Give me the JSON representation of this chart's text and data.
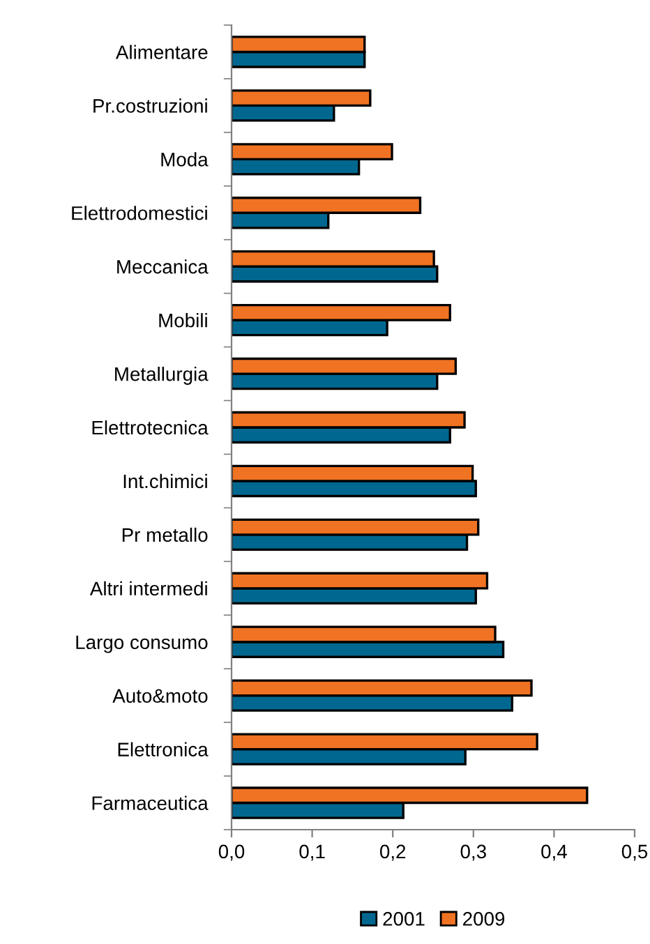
{
  "chart_data": {
    "type": "bar",
    "orientation": "horizontal",
    "categories": [
      "Alimentare",
      "Pr.costruzioni",
      "Moda",
      "Elettrodomestici",
      "Meccanica",
      "Mobili",
      "Metallurgia",
      "Elettrotecnica",
      "Int.chimici",
      "Pr metallo",
      "Altri intermedi",
      "Largo consumo",
      "Auto&moto",
      "Elettronica",
      "Farmaceutica"
    ],
    "series": [
      {
        "name": "2001",
        "color": "#006890",
        "values": [
          0.165,
          0.127,
          0.158,
          0.12,
          0.255,
          0.193,
          0.255,
          0.271,
          0.303,
          0.292,
          0.303,
          0.337,
          0.348,
          0.29,
          0.213
        ]
      },
      {
        "name": "2009",
        "color": "#f07323",
        "values": [
          0.165,
          0.172,
          0.199,
          0.234,
          0.251,
          0.271,
          0.278,
          0.289,
          0.299,
          0.306,
          0.317,
          0.327,
          0.372,
          0.379,
          0.441
        ]
      }
    ],
    "xlim": [
      0,
      0.5
    ],
    "xticks": [
      {
        "value": 0,
        "label": "0,0"
      },
      {
        "value": 0.1,
        "label": "0,1"
      },
      {
        "value": 0.2,
        "label": "0,2"
      },
      {
        "value": 0.3,
        "label": "0,3"
      },
      {
        "value": 0.4,
        "label": "0,4"
      },
      {
        "value": 0.5,
        "label": "0,5"
      }
    ],
    "grid": false,
    "legend": "bottom"
  }
}
